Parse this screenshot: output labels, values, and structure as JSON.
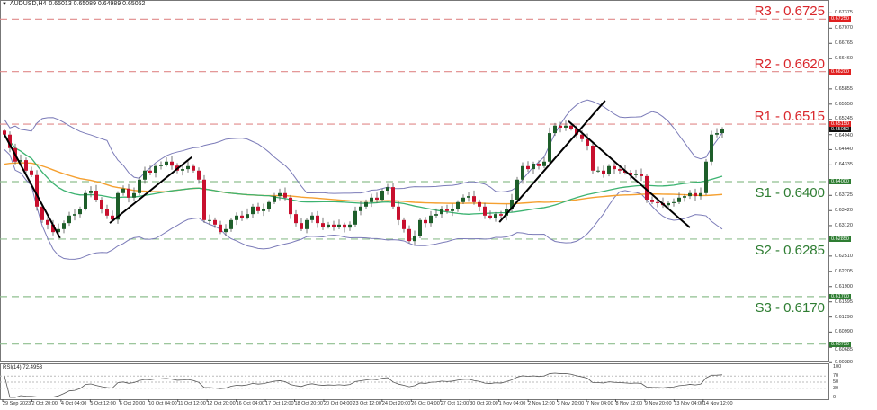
{
  "header": {
    "symbol": "AUDUSD,H4",
    "ohlc": "0.65013 0.65089 0.64989 0.65052"
  },
  "rsi_label": "RSI(14) 72.4953",
  "colors": {
    "resistance": "#d9262b",
    "support": "#2e7d32",
    "bull": "#1e5e2a",
    "bear": "#c8102e",
    "bands": "#7b7bb8",
    "ma_fast": "#3cb371",
    "ma_slow": "#f5a030"
  },
  "levels": [
    {
      "label": "R3 - 0.6725",
      "price": 0.6725,
      "type": "r",
      "tag": "0.67250"
    },
    {
      "label": "R2 - 0.6620",
      "price": 0.662,
      "type": "r",
      "tag": "0.66200"
    },
    {
      "label": "R1 - 0.6515",
      "price": 0.6515,
      "type": "r",
      "tag": "0.65150"
    },
    {
      "label": "S1 - 0.6400",
      "price": 0.64,
      "type": "s",
      "tag": "0.64000"
    },
    {
      "label": "S2 - 0.6285",
      "price": 0.6285,
      "type": "s",
      "tag": "0.62850"
    },
    {
      "label": "S3 - 0.6170",
      "price": 0.617,
      "type": "s",
      "tag": "0.61700"
    },
    {
      "label": "",
      "price": 0.6075,
      "type": "s",
      "tag": "0.60750"
    }
  ],
  "current_price": {
    "price": 0.65052,
    "tag": "0.65052"
  },
  "y_axis_labels": [
    "0.67375",
    "0.67070",
    "0.66765",
    "0.66460",
    "0.65855",
    "0.65550",
    "0.65245",
    "0.64940",
    "0.64640",
    "0.64335",
    "0.63725",
    "0.63420",
    "0.63120",
    "0.62510",
    "0.62205",
    "0.61900",
    "0.61595",
    "0.61290",
    "0.60990",
    "0.60685",
    "0.60380"
  ],
  "rsi_axis_labels": [
    "100",
    "70",
    "50",
    "30",
    "0"
  ],
  "x_axis_labels": [
    "29 Sep 2023",
    "2 Oct 20:00",
    "4 Oct 04:00",
    "5 Oct 12:00",
    "6 Oct 20:00",
    "10 Oct 04:00",
    "11 Oct 12:00",
    "12 Oct 20:00",
    "16 Oct 04:00",
    "17 Oct 12:00",
    "18 Oct 20:00",
    "20 Oct 04:00",
    "23 Oct 12:00",
    "24 Oct 20:00",
    "26 Oct 04:00",
    "27 Oct 12:00",
    "30 Oct 20:00",
    "1 Nov 04:00",
    "2 Nov 12:00",
    "3 Nov 20:00",
    "7 Nov 04:00",
    "8 Nov 12:00",
    "9 Nov 20:00",
    "13 Nov 04:00",
    "14 Nov 12:00"
  ],
  "chart_data": {
    "type": "candlestick",
    "symbol": "AUDUSD",
    "timeframe": "H4",
    "ylim": [
      0.603,
      0.676
    ],
    "closes": [
      0.6494,
      0.6467,
      0.644,
      0.6443,
      0.6422,
      0.6413,
      0.635,
      0.6323,
      0.6314,
      0.6299,
      0.6305,
      0.6317,
      0.6332,
      0.6335,
      0.6346,
      0.6377,
      0.6382,
      0.6364,
      0.6346,
      0.6332,
      0.6324,
      0.6377,
      0.6386,
      0.6368,
      0.6377,
      0.6404,
      0.6422,
      0.6418,
      0.6431,
      0.6434,
      0.644,
      0.6432,
      0.6422,
      0.6425,
      0.6431,
      0.6422,
      0.6404,
      0.6323,
      0.6323,
      0.6314,
      0.6299,
      0.6305,
      0.6323,
      0.6332,
      0.6328,
      0.6335,
      0.635,
      0.6341,
      0.6346,
      0.6359,
      0.6371,
      0.6377,
      0.6368,
      0.6335,
      0.6317,
      0.6305,
      0.6323,
      0.6332,
      0.6317,
      0.631,
      0.6314,
      0.631,
      0.6314,
      0.6308,
      0.6314,
      0.6341,
      0.635,
      0.6359,
      0.6368,
      0.6364,
      0.6382,
      0.6389,
      0.635,
      0.6323,
      0.6305,
      0.6281,
      0.6292,
      0.6323,
      0.6317,
      0.6332,
      0.6335,
      0.6346,
      0.6341,
      0.6346,
      0.6359,
      0.6368,
      0.6371,
      0.6359,
      0.635,
      0.6332,
      0.6328,
      0.6335,
      0.6332,
      0.6346,
      0.6364,
      0.6404,
      0.6431,
      0.6425,
      0.6436,
      0.6431,
      0.644,
      0.6497,
      0.6512,
      0.6508,
      0.6512,
      0.6506,
      0.6494,
      0.6485,
      0.6472,
      0.6422,
      0.6422,
      0.6416,
      0.6431,
      0.6425,
      0.6422,
      0.6418,
      0.6413,
      0.6416,
      0.6411,
      0.6364,
      0.6359,
      0.6357,
      0.6353,
      0.6357,
      0.6359,
      0.6368,
      0.6371,
      0.6377,
      0.6371,
      0.6377,
      0.644,
      0.6494,
      0.6497,
      0.6505
    ],
    "indicators": [
      "Bollinger Bands",
      "Moving Average (fast)",
      "Moving Average (slow)",
      "RSI(14)"
    ],
    "trendlines": [
      {
        "from": {
          "bar": 0,
          "price": 0.6494
        },
        "to": {
          "bar": 10.3,
          "price": 0.6287
        }
      },
      {
        "from": {
          "bar": 19.5,
          "price": 0.6317
        },
        "to": {
          "bar": 34.7,
          "price": 0.6449
        }
      },
      {
        "from": {
          "bar": 91.7,
          "price": 0.6319
        },
        "to": {
          "bar": 111.3,
          "price": 0.6562
        }
      },
      {
        "from": {
          "bar": 104.5,
          "price": 0.6521
        },
        "to": {
          "bar": 127,
          "price": 0.6308
        }
      }
    ]
  }
}
